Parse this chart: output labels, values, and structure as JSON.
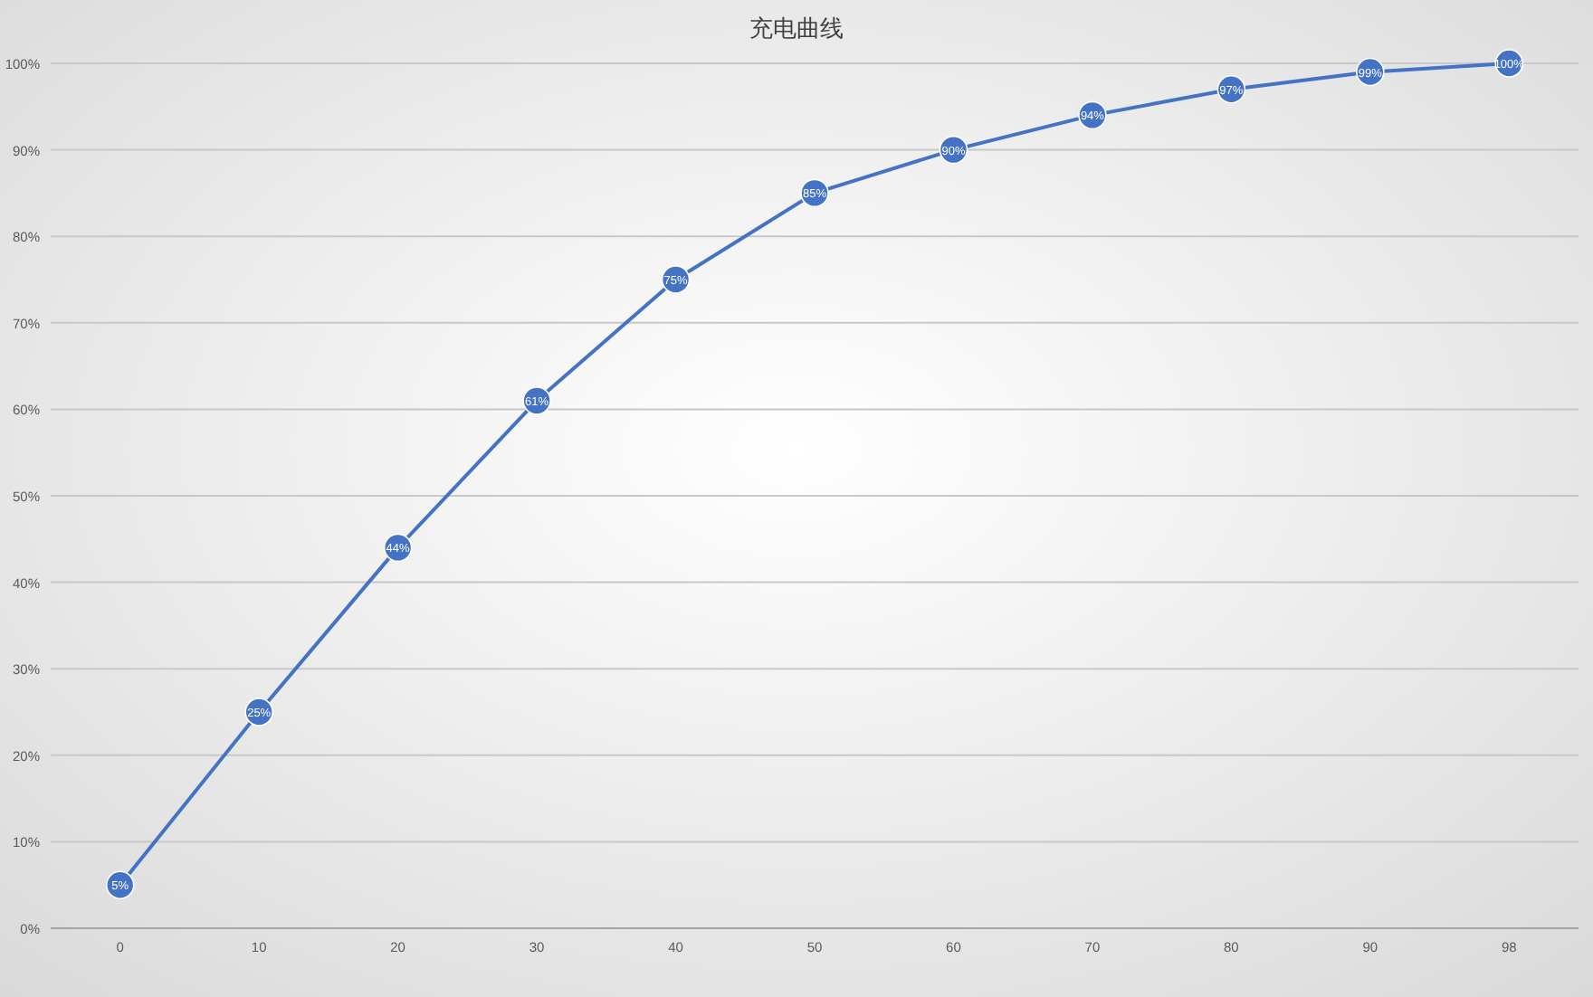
{
  "chart_data": {
    "type": "line",
    "title": "充电曲线",
    "categories": [
      "0",
      "10",
      "20",
      "30",
      "40",
      "50",
      "60",
      "70",
      "80",
      "90",
      "98"
    ],
    "series": [
      {
        "color": "#4472c4",
        "values": [
          5,
          25,
          44,
          61,
          75,
          85,
          90,
          94,
          97,
          99,
          100
        ],
        "value_labels": [
          "5%",
          "25%",
          "44%",
          "61%",
          "75%",
          "85%",
          "90%",
          "94%",
          "97%",
          "99%",
          "100%"
        ]
      }
    ],
    "ylim": [
      0,
      100
    ],
    "yticks": [
      {
        "value": 0,
        "label": "0%"
      },
      {
        "value": 10,
        "label": "10%"
      },
      {
        "value": 20,
        "label": "20%"
      },
      {
        "value": 30,
        "label": "30%"
      },
      {
        "value": 40,
        "label": "40%"
      },
      {
        "value": 50,
        "label": "50%"
      },
      {
        "value": 60,
        "label": "60%"
      },
      {
        "value": 70,
        "label": "70%"
      },
      {
        "value": 80,
        "label": "80%"
      },
      {
        "value": 90,
        "label": "90%"
      },
      {
        "value": 100,
        "label": "100%"
      }
    ],
    "grid": "y",
    "marker": "circle",
    "line_style": "solid"
  }
}
